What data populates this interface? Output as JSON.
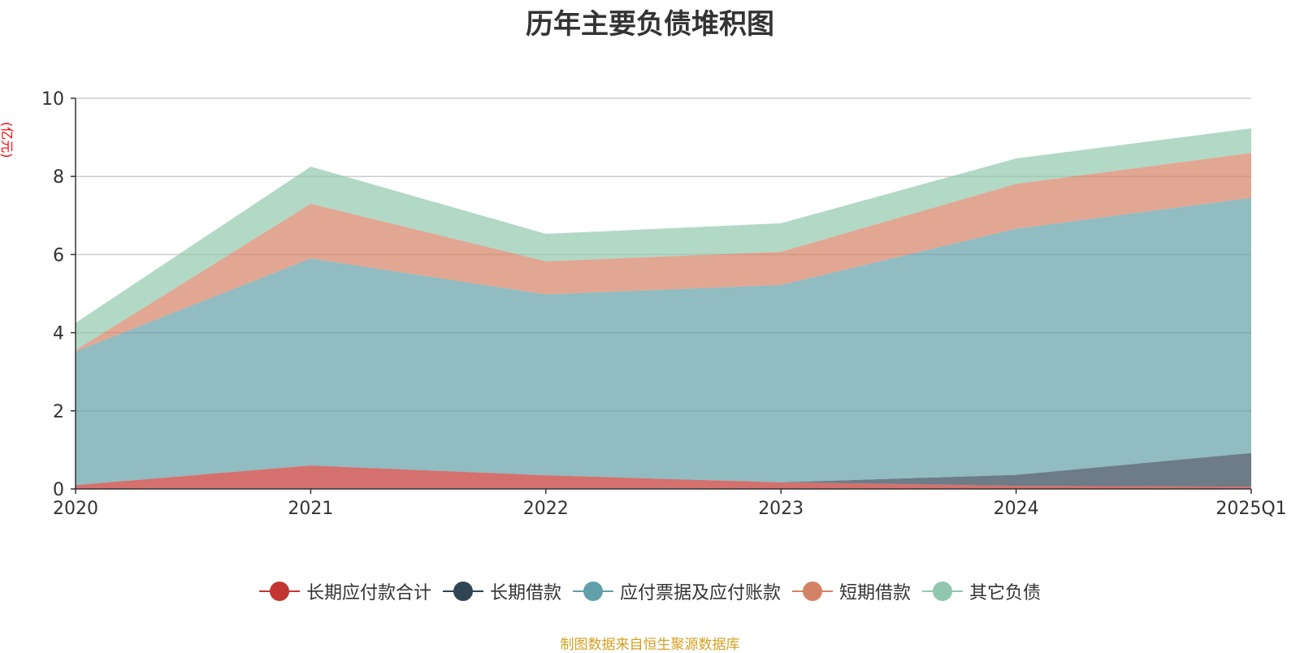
{
  "chart_data": {
    "type": "area",
    "stacked": true,
    "title": "历年主要负债堆积图",
    "unit_label": "(亿元)",
    "categories": [
      "2020",
      "2021",
      "2022",
      "2023",
      "2024",
      "2025Q1"
    ],
    "y_ticks": [
      "0",
      "2",
      "4",
      "6",
      "8",
      "10"
    ],
    "ylim": [
      0,
      10
    ],
    "grid": true,
    "legend_position": "bottom",
    "series": [
      {
        "name": "长期应付款合计",
        "color": "#c23531",
        "values": [
          0.1,
          0.6,
          0.35,
          0.17,
          0.08,
          0.06
        ]
      },
      {
        "name": "长期借款",
        "color": "#2f4554",
        "values": [
          0.0,
          0.0,
          0.0,
          0.0,
          0.28,
          0.86
        ]
      },
      {
        "name": "应付票据及应付账款",
        "color": "#61a0a8",
        "values": [
          3.42,
          5.3,
          4.63,
          5.05,
          6.3,
          6.53
        ]
      },
      {
        "name": "短期借款",
        "color": "#d48265",
        "values": [
          0.03,
          1.4,
          0.85,
          0.85,
          1.15,
          1.15
        ]
      },
      {
        "name": "其它负债",
        "color": "#91c7ae",
        "values": [
          0.7,
          0.95,
          0.7,
          0.73,
          0.65,
          0.63
        ]
      }
    ]
  },
  "footer": {
    "source": "制图数据来自恒生聚源数据库"
  }
}
